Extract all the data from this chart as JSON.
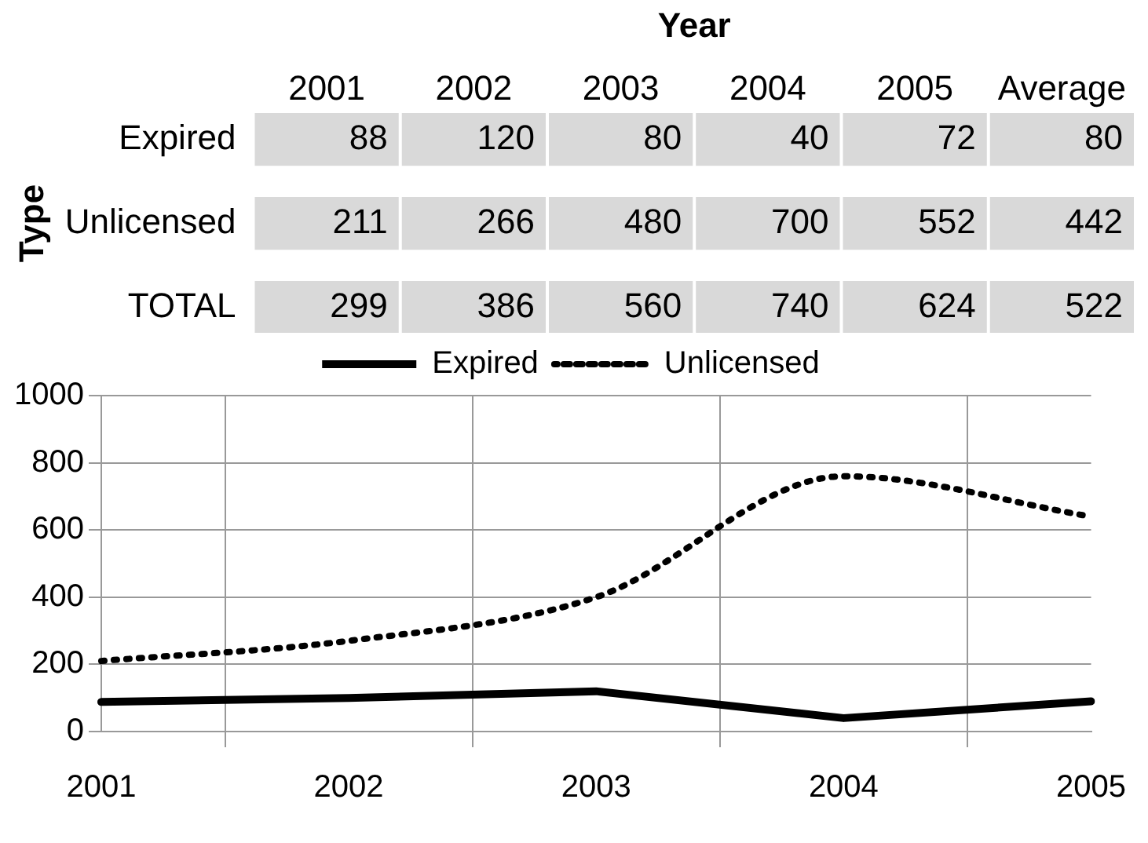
{
  "chart_data": [
    {
      "type": "heatmap",
      "data_labels": true,
      "xlabel": "Year",
      "ylabel": "Type",
      "categories": [
        "2001",
        "2002",
        "2003",
        "2004",
        "2005",
        "Average"
      ],
      "y_categories": [
        "Expired",
        "Unlicensed",
        "TOTAL"
      ],
      "cells": [
        [
          88,
          120,
          80,
          40,
          72,
          80
        ],
        [
          211,
          266,
          480,
          700,
          552,
          442
        ],
        [
          299,
          386,
          560,
          740,
          624,
          522
        ]
      ]
    },
    {
      "type": "line",
      "categories": [
        "2001",
        "2002",
        "2003",
        "2004",
        "2005"
      ],
      "ylim": [
        0,
        1000
      ],
      "yticks": [
        0,
        200,
        400,
        600,
        800,
        1000
      ],
      "grid": true,
      "legend": "top",
      "marker": "none",
      "series": [
        {
          "name": "Expired",
          "color": "#000000",
          "line_style": "solid",
          "values": [
            88,
            100,
            120,
            40,
            90
          ]
        },
        {
          "name": "Unlicensed",
          "color": "#000000",
          "line_style": "dotted",
          "values": [
            210,
            270,
            400,
            760,
            640
          ]
        }
      ]
    }
  ]
}
